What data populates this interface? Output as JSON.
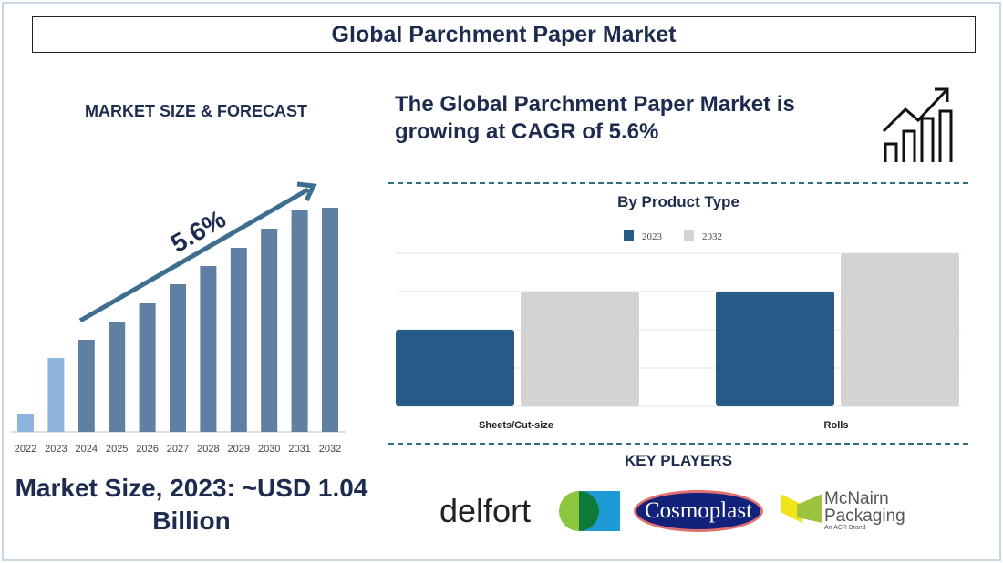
{
  "title": "Global Parchment Paper Market",
  "left_heading": "MARKET SIZE & FORECAST",
  "cagr_text": "The Global Parchment Paper Market is growing at CAGR of 5.6%",
  "market_size": "Market Size, 2023: ~USD 1.04 Billion",
  "key_players_heading": "KEY PLAYERS",
  "key_players": [
    "delfort",
    "Cosmoplast",
    "McNairn Packaging"
  ],
  "mcnairn_tagline": "An ACR Brand",
  "chart_data": [
    {
      "type": "bar",
      "title": "",
      "categories": [
        "2022",
        "2023",
        "2024",
        "2025",
        "2026",
        "2027",
        "2028",
        "2029",
        "2030",
        "2031",
        "2032"
      ],
      "values": [
        20,
        81,
        101,
        121,
        141,
        162,
        182,
        202,
        223,
        243,
        246
      ],
      "annotation": "5.6%",
      "colors": {
        "historical": "#8db5e0",
        "forecast": "#5f7fa3"
      },
      "grid": false
    },
    {
      "type": "bar",
      "title": "By Product Type",
      "categories": [
        "Sheets/Cut-size",
        "Rolls"
      ],
      "series": [
        {
          "name": "2023",
          "values": [
            2,
            3
          ],
          "color": "#265a87"
        },
        {
          "name": "2032",
          "values": [
            3,
            4
          ],
          "color": "#d3d3d3"
        }
      ],
      "ylim": [
        0,
        4
      ],
      "grid": true,
      "legend": "top"
    }
  ]
}
